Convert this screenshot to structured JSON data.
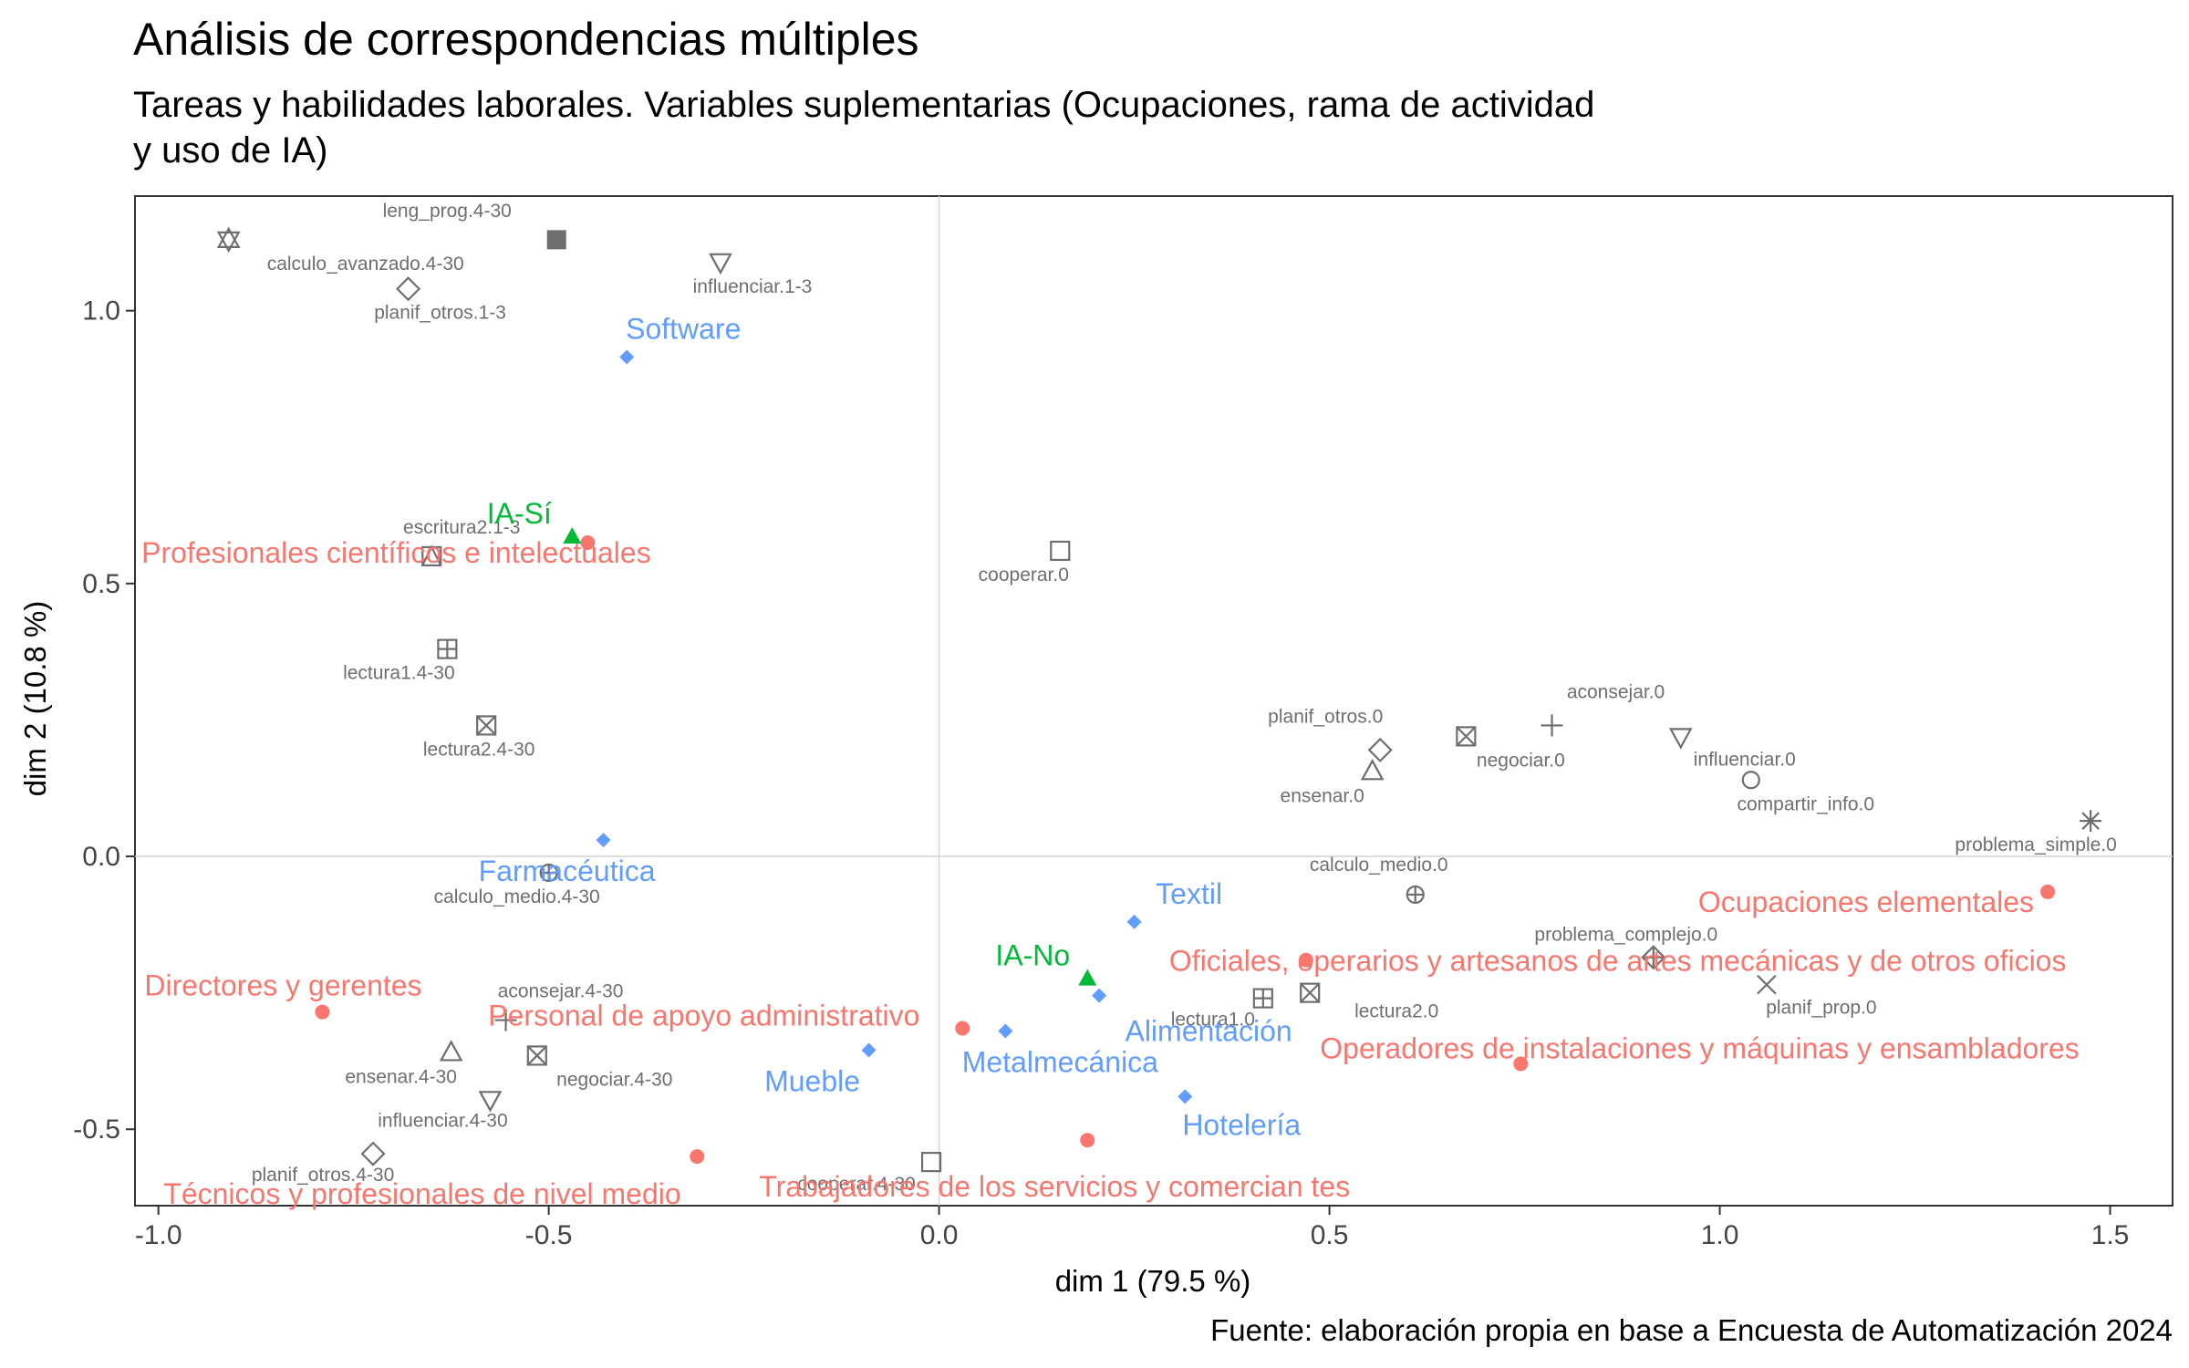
{
  "chart_data": {
    "type": "scatter",
    "title": "Análisis de correspondencias múltiples",
    "subtitle_lines": [
      "Tareas y habilidades laborales. Variables suplementarias (Ocupaciones, rama de actividad",
      "y uso de IA)"
    ],
    "xlabel": "dim 1 (79.5 %)",
    "ylabel": "dim 2 (10.8 %)",
    "caption": "Fuente: elaboración propia en base a Encuesta de Automatización 2024",
    "xlim": [
      -1.03,
      1.58
    ],
    "ylim": [
      -0.64,
      1.21
    ],
    "x_ticks": [
      {
        "value": -1.0,
        "label": "-1.0"
      },
      {
        "value": -0.5,
        "label": "-0.5"
      },
      {
        "value": 0.0,
        "label": "0.0"
      },
      {
        "value": 0.5,
        "label": "0.5"
      },
      {
        "value": 1.0,
        "label": "1.0"
      },
      {
        "value": 1.5,
        "label": "1.5"
      }
    ],
    "y_ticks": [
      {
        "value": -0.5,
        "label": "-0.5"
      },
      {
        "value": 0.0,
        "label": "0.0"
      },
      {
        "value": 0.5,
        "label": "0.5"
      },
      {
        "value": 1.0,
        "label": "1.0"
      }
    ],
    "grid": false,
    "reference_lines": {
      "x": 0,
      "y": 0
    },
    "colors": {
      "active": "#6e6e6e",
      "ocupaciones": "#f8766d",
      "rama": "#619cff",
      "ia": "#00ba38"
    },
    "active_categories": [
      {
        "label": "leng_prog.4-30",
        "x": -0.49,
        "y": 1.13,
        "shape": "square-filled"
      },
      {
        "label": "calculo_avanzado.4-30",
        "x": -0.91,
        "y": 1.13,
        "shape": "star-of-david"
      },
      {
        "label": "influenciar.1-3",
        "x": -0.28,
        "y": 1.09,
        "shape": "triangle-down"
      },
      {
        "label": "planif_otros.1-3",
        "x": -0.68,
        "y": 1.04,
        "shape": "diamond"
      },
      {
        "label": "escritura2.1-3",
        "x": -0.65,
        "y": 0.55,
        "shape": "square-triangle"
      },
      {
        "label": "cooperar.0",
        "x": 0.155,
        "y": 0.56,
        "shape": "square"
      },
      {
        "label": "lectura1.4-30",
        "x": -0.63,
        "y": 0.38,
        "shape": "square-plus"
      },
      {
        "label": "lectura2.4-30",
        "x": -0.58,
        "y": 0.24,
        "shape": "square-x"
      },
      {
        "label": "calculo_medio.4-30",
        "x": -0.5,
        "y": -0.03,
        "shape": "circle-plus"
      },
      {
        "label": "planif_otros.0",
        "x": 0.565,
        "y": 0.195,
        "shape": "diamond"
      },
      {
        "label": "negociar.0",
        "x": 0.675,
        "y": 0.22,
        "shape": "square-x"
      },
      {
        "label": "aconsejar.0",
        "x": 0.785,
        "y": 0.24,
        "shape": "plus"
      },
      {
        "label": "influenciar.0",
        "x": 0.95,
        "y": 0.22,
        "shape": "triangle-down"
      },
      {
        "label": "ensenar.0",
        "x": 0.555,
        "y": 0.155,
        "shape": "triangle"
      },
      {
        "label": "compartir_info.0",
        "x": 1.04,
        "y": 0.14,
        "shape": "circle"
      },
      {
        "label": "problema_simple.0",
        "x": 1.475,
        "y": 0.065,
        "shape": "asterisk"
      },
      {
        "label": "calculo_medio.0",
        "x": 0.61,
        "y": -0.07,
        "shape": "circle-plus"
      },
      {
        "label": "problema_complejo.0",
        "x": 0.915,
        "y": -0.185,
        "shape": "diamond-plus"
      },
      {
        "label": "planif_prop.0",
        "x": 1.06,
        "y": -0.235,
        "shape": "x"
      },
      {
        "label": "lectura2.0",
        "x": 0.475,
        "y": -0.25,
        "shape": "square-x"
      },
      {
        "label": "lectura1.0",
        "x": 0.415,
        "y": -0.26,
        "shape": "square-plus"
      },
      {
        "label": "aconsejar.4-30",
        "x": -0.555,
        "y": -0.3,
        "shape": "plus"
      },
      {
        "label": "ensenar.4-30",
        "x": -0.625,
        "y": -0.36,
        "shape": "triangle"
      },
      {
        "label": "negociar.4-30",
        "x": -0.515,
        "y": -0.365,
        "shape": "square-x"
      },
      {
        "label": "influenciar.4-30",
        "x": -0.575,
        "y": -0.445,
        "shape": "triangle-down"
      },
      {
        "label": "planif_otros.4-30",
        "x": -0.725,
        "y": -0.545,
        "shape": "diamond"
      },
      {
        "label": "cooperar.4-30",
        "x": -0.01,
        "y": -0.56,
        "shape": "square"
      }
    ],
    "ocupaciones": [
      {
        "label": "Profesionales científicos e intelectuales",
        "x": -0.45,
        "y": 0.575
      },
      {
        "label": "Ocupaciones elementales",
        "x": 1.42,
        "y": -0.065
      },
      {
        "label": "Oficiales, operarios y artesanos de artes mecánicas y de otros oficios",
        "x": 0.47,
        "y": -0.19
      },
      {
        "label": "Directores y gerentes",
        "x": -0.79,
        "y": -0.285
      },
      {
        "label": "Personal de apoyo administrativo",
        "x": 0.03,
        "y": -0.315
      },
      {
        "label": "Operadores de instalaciones y máquinas y ensambladores",
        "x": 0.745,
        "y": -0.38
      },
      {
        "label": "Trabajadores de los servicios y comercian tes",
        "x": 0.19,
        "y": -0.52
      },
      {
        "label": "Técnicos y profesionales de nivel medio",
        "x": -0.31,
        "y": -0.55
      }
    ],
    "rama_actividad": [
      {
        "label": "Software",
        "x": -0.4,
        "y": 0.915
      },
      {
        "label": "Farmacéutica",
        "x": -0.43,
        "y": 0.03
      },
      {
        "label": "Textil",
        "x": 0.25,
        "y": -0.12
      },
      {
        "label": "Alimentación",
        "x": 0.205,
        "y": -0.255
      },
      {
        "label": "Metalmecánica",
        "x": 0.085,
        "y": -0.32
      },
      {
        "label": "Mueble",
        "x": -0.09,
        "y": -0.355
      },
      {
        "label": "Hotelería",
        "x": 0.315,
        "y": -0.44
      }
    ],
    "uso_ia": [
      {
        "label": "IA-Sí",
        "x": -0.47,
        "y": 0.585
      },
      {
        "label": "IA-No",
        "x": 0.19,
        "y": -0.225
      }
    ]
  }
}
